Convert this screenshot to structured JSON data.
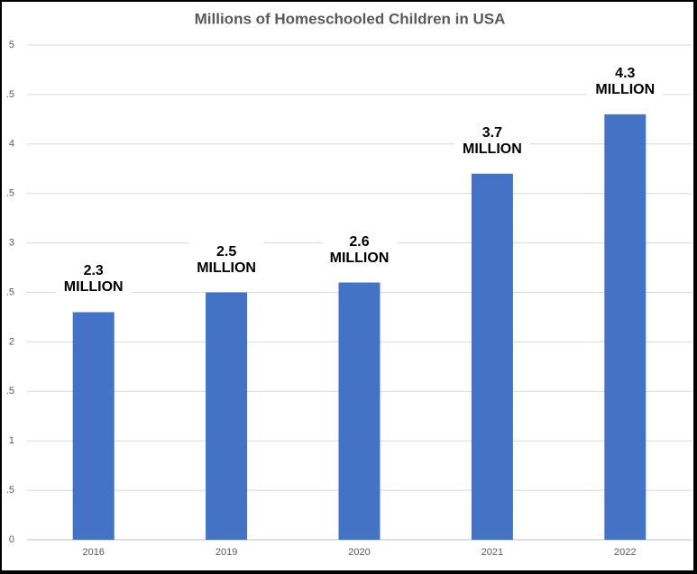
{
  "chart_data": {
    "type": "bar",
    "title": "Millions of Homeschooled Children in USA",
    "categories": [
      "2016",
      "2019",
      "2020",
      "2021",
      "2022"
    ],
    "values": [
      2.3,
      2.5,
      2.6,
      3.7,
      4.3
    ],
    "value_labels": [
      "2.3 MILLION",
      "2.5 MILLION",
      "2.6 MILLION",
      "3.7 MILLION",
      "4.3 MILLION"
    ],
    "color": "#4472c4",
    "ylim": [
      0,
      5
    ],
    "yticks": [
      0,
      {
        "value": 0.5,
        "label": ".5"
      },
      1,
      {
        "value": 1.5,
        "label": ".5"
      },
      2,
      {
        "value": 2.5,
        "label": ".5"
      },
      3,
      {
        "value": 3.5,
        "label": ".5"
      },
      4,
      {
        "value": 4.5,
        "label": ".5"
      },
      5
    ],
    "grid": true
  }
}
